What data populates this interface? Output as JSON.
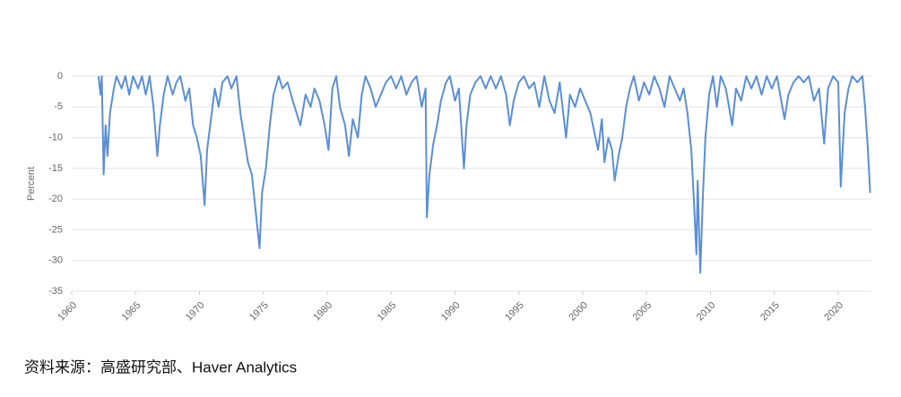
{
  "chart_data": {
    "type": "line",
    "ylabel": "Percent",
    "source": "资料来源：高盛研究部、Haver Analytics",
    "grid": true,
    "color": "#5b8fd4",
    "xlim": [
      1960,
      2022.6
    ],
    "ylim": [
      -35,
      0
    ],
    "xticks": [
      1960,
      1965,
      1970,
      1975,
      1980,
      1985,
      1990,
      1995,
      2000,
      2005,
      2010,
      2015,
      2020
    ],
    "yticks": [
      0,
      -5,
      -10,
      -15,
      -20,
      -25,
      -30,
      -35
    ],
    "x": [
      1962.1,
      1962.25,
      1962.35,
      1962.5,
      1962.65,
      1962.8,
      1963.0,
      1963.3,
      1963.5,
      1963.9,
      1964.2,
      1964.5,
      1964.8,
      1965.2,
      1965.5,
      1965.8,
      1966.1,
      1966.4,
      1966.7,
      1966.9,
      1967.2,
      1967.5,
      1967.9,
      1968.2,
      1968.5,
      1968.9,
      1969.2,
      1969.5,
      1969.8,
      1970.1,
      1970.4,
      1970.6,
      1970.9,
      1971.2,
      1971.5,
      1971.8,
      1972.2,
      1972.5,
      1972.9,
      1973.2,
      1973.5,
      1973.8,
      1974.1,
      1974.4,
      1974.7,
      1974.9,
      1975.2,
      1975.5,
      1975.8,
      1976.2,
      1976.5,
      1976.9,
      1977.3,
      1977.6,
      1977.9,
      1978.3,
      1978.7,
      1979.0,
      1979.4,
      1979.8,
      1980.1,
      1980.4,
      1980.7,
      1981.0,
      1981.4,
      1981.7,
      1982.0,
      1982.4,
      1982.7,
      1983.0,
      1983.4,
      1983.8,
      1984.2,
      1984.6,
      1985.0,
      1985.4,
      1985.8,
      1986.2,
      1986.6,
      1987.0,
      1987.4,
      1987.7,
      1987.8,
      1988.0,
      1988.3,
      1988.6,
      1988.9,
      1989.3,
      1989.6,
      1990.0,
      1990.3,
      1990.7,
      1990.9,
      1991.2,
      1991.6,
      1992.0,
      1992.4,
      1992.8,
      1993.2,
      1993.6,
      1994.0,
      1994.3,
      1994.6,
      1995.0,
      1995.4,
      1995.8,
      1996.2,
      1996.6,
      1997.0,
      1997.4,
      1997.8,
      1998.2,
      1998.7,
      1999.0,
      1999.4,
      1999.8,
      2000.2,
      2000.6,
      2000.9,
      2001.2,
      2001.5,
      2001.7,
      2002.0,
      2002.3,
      2002.5,
      2002.8,
      2003.1,
      2003.4,
      2003.7,
      2004.0,
      2004.4,
      2004.8,
      2005.2,
      2005.6,
      2006.0,
      2006.4,
      2006.8,
      2007.2,
      2007.6,
      2007.9,
      2008.2,
      2008.5,
      2008.7,
      2008.9,
      2009.0,
      2009.2,
      2009.4,
      2009.6,
      2009.9,
      2010.2,
      2010.5,
      2010.8,
      2011.2,
      2011.7,
      2012.0,
      2012.4,
      2012.8,
      2013.2,
      2013.6,
      2014.0,
      2014.4,
      2014.8,
      2015.2,
      2015.8,
      2016.1,
      2016.5,
      2016.9,
      2017.3,
      2017.7,
      2018.1,
      2018.5,
      2018.9,
      2019.2,
      2019.6,
      2020.0,
      2020.2,
      2020.5,
      2020.8,
      2021.1,
      2021.5,
      2021.9,
      2022.1,
      2022.3,
      2022.5
    ],
    "values": [
      0,
      -3,
      0,
      -16,
      -8,
      -13,
      -6,
      -2,
      0,
      -2,
      0,
      -3,
      0,
      -2,
      0,
      -3,
      0,
      -5,
      -13,
      -8,
      -3,
      0,
      -3,
      -1,
      0,
      -4,
      -2,
      -8,
      -10,
      -13,
      -21,
      -12,
      -7,
      -2,
      -5,
      -1,
      0,
      -2,
      0,
      -6,
      -10,
      -14,
      -16,
      -22,
      -28,
      -19,
      -15,
      -8,
      -3,
      0,
      -2,
      -1,
      -4,
      -6,
      -8,
      -3,
      -5,
      -2,
      -4,
      -8,
      -12,
      -2,
      0,
      -5,
      -8,
      -13,
      -7,
      -10,
      -3,
      0,
      -2,
      -5,
      -3,
      -1,
      0,
      -2,
      0,
      -3,
      -1,
      0,
      -5,
      -2,
      -23,
      -16,
      -11,
      -8,
      -4,
      -1,
      0,
      -4,
      -2,
      -15,
      -8,
      -3,
      -1,
      0,
      -2,
      0,
      -2,
      0,
      -3,
      -8,
      -4,
      -1,
      0,
      -2,
      -1,
      -5,
      0,
      -4,
      -6,
      -1,
      -10,
      -3,
      -5,
      -2,
      -4,
      -6,
      -9,
      -12,
      -7,
      -14,
      -10,
      -12,
      -17,
      -13,
      -10,
      -5,
      -2,
      0,
      -4,
      -1,
      -3,
      0,
      -2,
      -5,
      0,
      -2,
      -4,
      -2,
      -6,
      -12,
      -20,
      -29,
      -17,
      -32,
      -20,
      -10,
      -3,
      0,
      -5,
      0,
      -2,
      -8,
      -2,
      -4,
      0,
      -2,
      0,
      -3,
      0,
      -2,
      0,
      -7,
      -3,
      -1,
      0,
      -1,
      0,
      -4,
      -2,
      -11,
      -2,
      0,
      -1,
      -18,
      -6,
      -2,
      0,
      -1,
      0,
      -5,
      -11,
      -19
    ]
  }
}
